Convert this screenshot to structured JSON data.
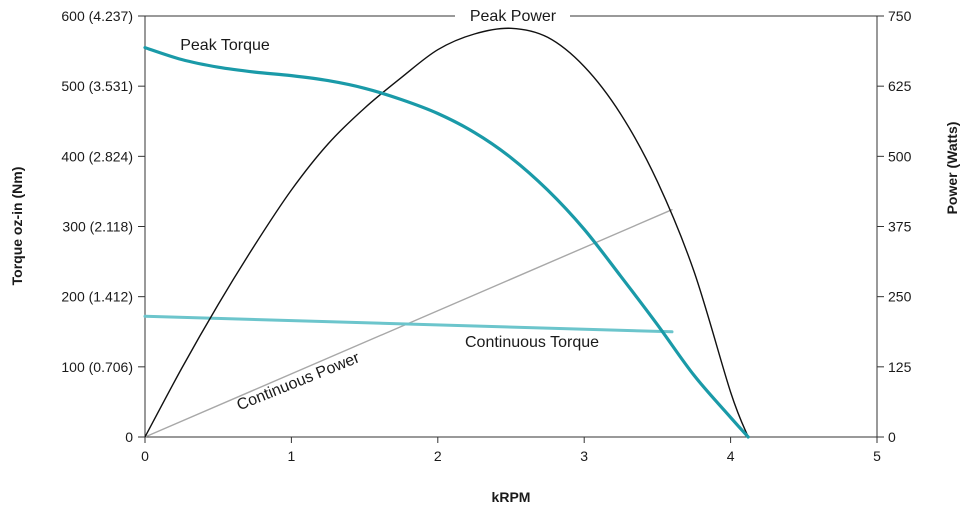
{
  "chart_data": {
    "type": "line",
    "xlabel": "kRPM",
    "ylabel_left": "Torque oz-in (Nm)",
    "ylabel_right": "Power (Watts)",
    "xlim": [
      0,
      5
    ],
    "ylim_left": [
      0,
      600
    ],
    "ylim_right": [
      0,
      750
    ],
    "x_ticks": [
      "0",
      "1",
      "2",
      "3",
      "4",
      "5"
    ],
    "y_left_ticks": [
      "0",
      "100 (0.706)",
      "200 (1.412)",
      "300 (2.118)",
      "400 (2.824)",
      "500 (3.531)",
      "600 (4.237)"
    ],
    "y_right_ticks": [
      "0",
      "125",
      "250",
      "375",
      "500",
      "625",
      "750"
    ],
    "grid": false,
    "series": [
      {
        "name": "Peak Torque",
        "axis": "left",
        "color": "#1a9aa8",
        "x": [
          0,
          0.25,
          0.5,
          0.75,
          1.0,
          1.25,
          1.5,
          1.75,
          2.0,
          2.25,
          2.5,
          2.75,
          3.0,
          3.25,
          3.5,
          3.75,
          4.0,
          4.12
        ],
        "y": [
          555,
          538,
          527,
          520,
          515,
          508,
          497,
          481,
          461,
          434,
          398,
          352,
          296,
          229,
          160,
          88,
          28,
          0
        ]
      },
      {
        "name": "Peak Power",
        "axis": "right",
        "color": "#111111",
        "x": [
          0,
          0.25,
          0.5,
          0.75,
          1.0,
          1.25,
          1.5,
          1.75,
          2.0,
          2.25,
          2.5,
          2.75,
          3.0,
          3.25,
          3.5,
          3.75,
          4.0,
          4.12
        ],
        "y": [
          0,
          122,
          236,
          342,
          440,
          522,
          586,
          640,
          690,
          718,
          728,
          712,
          660,
          575,
          455,
          295,
          80,
          0
        ]
      },
      {
        "name": "Continuous Torque",
        "axis": "left",
        "color": "#6cc5cc",
        "x": [
          0,
          3.6
        ],
        "y": [
          172,
          150
        ]
      },
      {
        "name": "Continuous Power",
        "axis": "right",
        "color": "#a8a8a8",
        "x": [
          0,
          3.6
        ],
        "y": [
          0,
          405
        ]
      }
    ],
    "annotations": [
      "Peak Torque",
      "Peak Power",
      "Continuous Torque",
      "Continuous Power"
    ]
  }
}
